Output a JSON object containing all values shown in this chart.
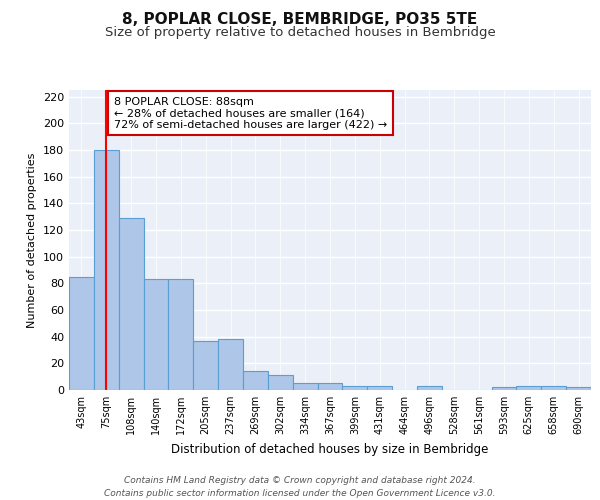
{
  "title1": "8, POPLAR CLOSE, BEMBRIDGE, PO35 5TE",
  "title2": "Size of property relative to detached houses in Bembridge",
  "xlabel": "Distribution of detached houses by size in Bembridge",
  "ylabel": "Number of detached properties",
  "categories": [
    "43sqm",
    "75sqm",
    "108sqm",
    "140sqm",
    "172sqm",
    "205sqm",
    "237sqm",
    "269sqm",
    "302sqm",
    "334sqm",
    "367sqm",
    "399sqm",
    "431sqm",
    "464sqm",
    "496sqm",
    "528sqm",
    "561sqm",
    "593sqm",
    "625sqm",
    "658sqm",
    "690sqm"
  ],
  "values": [
    85,
    180,
    129,
    83,
    83,
    37,
    38,
    14,
    11,
    5,
    5,
    3,
    3,
    0,
    3,
    0,
    0,
    2,
    3,
    3,
    2
  ],
  "bar_color": "#aec6e8",
  "bar_edge_color": "#5a9fd4",
  "red_line_x": 1.0,
  "annotation_text": "8 POPLAR CLOSE: 88sqm\n← 28% of detached houses are smaller (164)\n72% of semi-detached houses are larger (422) →",
  "annotation_box_color": "#ffffff",
  "annotation_box_edge": "#cc0000",
  "ylim": [
    0,
    225
  ],
  "yticks": [
    0,
    20,
    40,
    60,
    80,
    100,
    120,
    140,
    160,
    180,
    200,
    220
  ],
  "background_color": "#eaeff8",
  "grid_color": "#ffffff",
  "footer": "Contains HM Land Registry data © Crown copyright and database right 2024.\nContains public sector information licensed under the Open Government Licence v3.0.",
  "title1_fontsize": 11,
  "title2_fontsize": 9.5,
  "xlabel_fontsize": 8.5,
  "ylabel_fontsize": 8,
  "annotation_fontsize": 8,
  "footer_fontsize": 6.5
}
